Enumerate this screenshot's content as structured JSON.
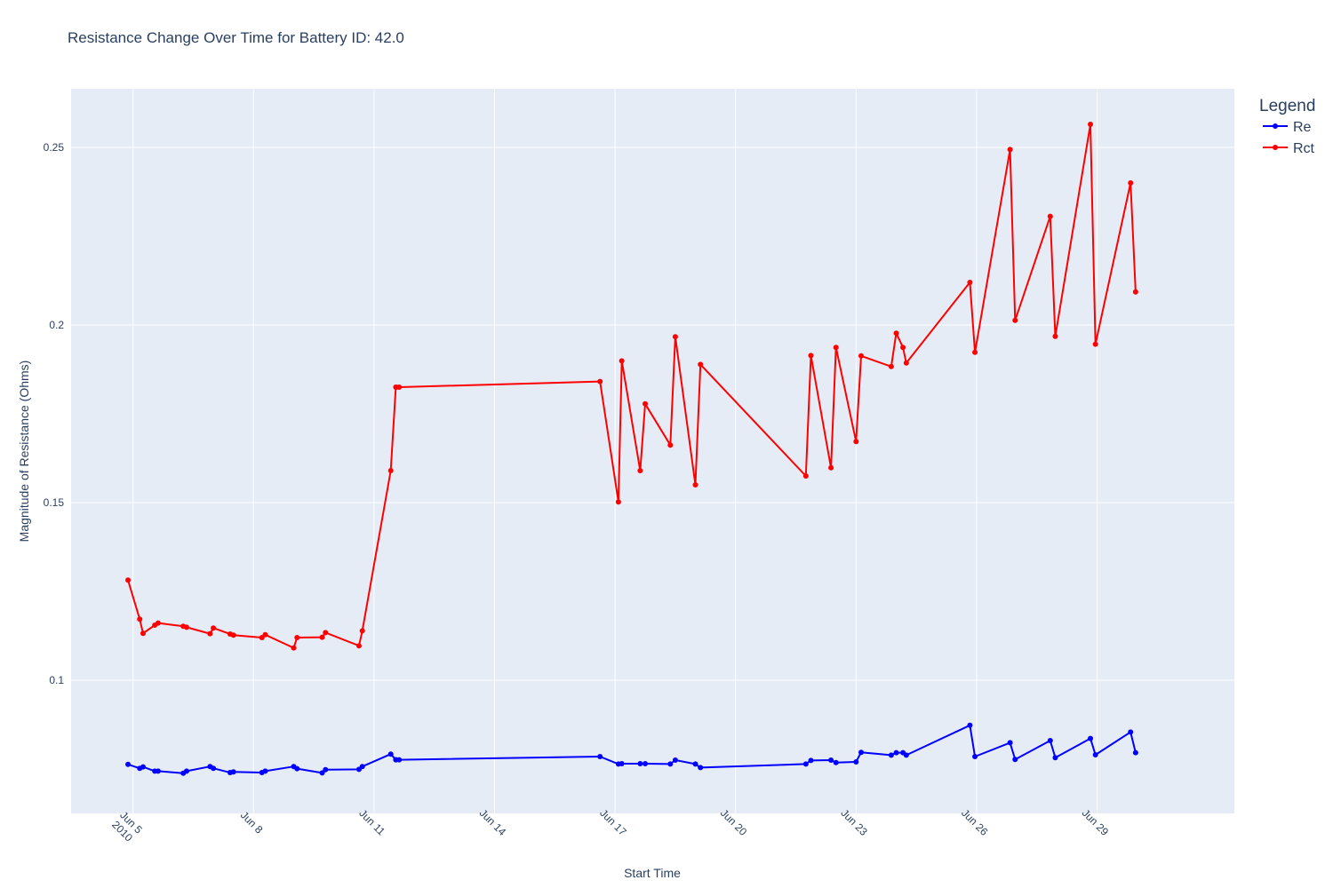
{
  "chart_data": {
    "type": "line",
    "title": "Resistance Change Over Time for Battery ID: 42.0",
    "xlabel": "Start Time",
    "ylabel": "Magnitude of Resistance (Ohms)",
    "x_ticks": [
      {
        "date": "2010-06-05",
        "lines": [
          "Jun 5",
          "2010"
        ]
      },
      {
        "date": "2010-06-08",
        "lines": [
          "Jun 8"
        ]
      },
      {
        "date": "2010-06-11",
        "lines": [
          "Jun 11"
        ]
      },
      {
        "date": "2010-06-14",
        "lines": [
          "Jun 14"
        ]
      },
      {
        "date": "2010-06-17",
        "lines": [
          "Jun 17"
        ]
      },
      {
        "date": "2010-06-20",
        "lines": [
          "Jun 20"
        ]
      },
      {
        "date": "2010-06-23",
        "lines": [
          "Jun 23"
        ]
      },
      {
        "date": "2010-06-26",
        "lines": [
          "Jun 26"
        ]
      },
      {
        "date": "2010-06-29",
        "lines": [
          "Jun 29"
        ]
      }
    ],
    "y_ticks": [
      0.1,
      0.15,
      0.2,
      0.25
    ],
    "y_tick_labels": [
      "0.1",
      "0.15",
      "0.2",
      "0.25"
    ],
    "xlim": [
      "2010-06-03 11:00",
      "2010-07-02 10:00"
    ],
    "ylim": [
      0.0625,
      0.2665
    ],
    "grid": true,
    "legend_title": "Legend",
    "legend_position": "top-right",
    "x": [
      "2010-06-04 21:00",
      "2010-06-05 04:00",
      "2010-06-05 06:00",
      "2010-06-05 13:00",
      "2010-06-05 15:00",
      "2010-06-06 06:00",
      "2010-06-06 08:00",
      "2010-06-06 22:00",
      "2010-06-07 00:00",
      "2010-06-07 10:00",
      "2010-06-07 12:00",
      "2010-06-08 05:00",
      "2010-06-08 07:00",
      "2010-06-09 00:00",
      "2010-06-09 02:00",
      "2010-06-09 17:00",
      "2010-06-09 19:00",
      "2010-06-10 15:00",
      "2010-06-10 17:00",
      "2010-06-11 10:00",
      "2010-06-11 13:00",
      "2010-06-11 13:10",
      "2010-06-11 15:00",
      "2010-06-16 15:00",
      "2010-06-17 02:00",
      "2010-06-17 04:00",
      "2010-06-17 15:00",
      "2010-06-17 18:00",
      "2010-06-18 09:00",
      "2010-06-18 12:00",
      "2010-06-19 00:00",
      "2010-06-19 03:00",
      "2010-06-21 18:00",
      "2010-06-21 21:00",
      "2010-06-22 09:00",
      "2010-06-22 12:00",
      "2010-06-23 00:00",
      "2010-06-23 03:00",
      "2010-06-23 21:00",
      "2010-06-24 00:00",
      "2010-06-24 04:00",
      "2010-06-24 06:00",
      "2010-06-25 20:00",
      "2010-06-25 23:00",
      "2010-06-26 20:00",
      "2010-06-26 23:00",
      "2010-06-27 20:00",
      "2010-06-27 23:00",
      "2010-06-28 20:00",
      "2010-06-28 23:00",
      "2010-06-29 20:00",
      "2010-06-29 23:00"
    ],
    "series": [
      {
        "name": "Re",
        "color": "#0000ff",
        "values": [
          0.0763,
          0.0752,
          0.0756,
          0.0744,
          0.0744,
          0.0738,
          0.0744,
          0.0757,
          0.0752,
          0.074,
          0.0742,
          0.074,
          0.0744,
          0.0757,
          0.0751,
          0.0739,
          0.0748,
          0.0749,
          0.0757,
          0.0792,
          0.0776,
          0.0776,
          0.0776,
          0.0785,
          0.0764,
          0.0765,
          0.0765,
          0.0765,
          0.0764,
          0.0775,
          0.0764,
          0.0754,
          0.0764,
          0.0774,
          0.0775,
          0.0768,
          0.077,
          0.0797,
          0.0789,
          0.0796,
          0.0796,
          0.0789,
          0.0873,
          0.0785,
          0.0824,
          0.0777,
          0.083,
          0.0782,
          0.0836,
          0.079,
          0.0854,
          0.0796
        ]
      },
      {
        "name": "Rct",
        "color": "#ff0000",
        "values": [
          0.1282,
          0.1172,
          0.1132,
          0.1155,
          0.1161,
          0.1152,
          0.1149,
          0.1131,
          0.1147,
          0.113,
          0.1127,
          0.112,
          0.1128,
          0.1091,
          0.112,
          0.1121,
          0.1134,
          0.1097,
          0.1139,
          0.159,
          0.1825,
          0.1825,
          0.1825,
          0.1841,
          0.1502,
          0.1899,
          0.159,
          0.1778,
          0.1662,
          0.1967,
          0.155,
          0.1889,
          0.1575,
          0.1914,
          0.1598,
          0.1937,
          0.1672,
          0.1913,
          0.1883,
          0.1977,
          0.1937,
          0.1893,
          0.212,
          0.1923,
          0.2494,
          0.2013,
          0.2306,
          0.1968,
          0.2565,
          0.1946,
          0.24,
          0.2093
        ]
      }
    ]
  }
}
